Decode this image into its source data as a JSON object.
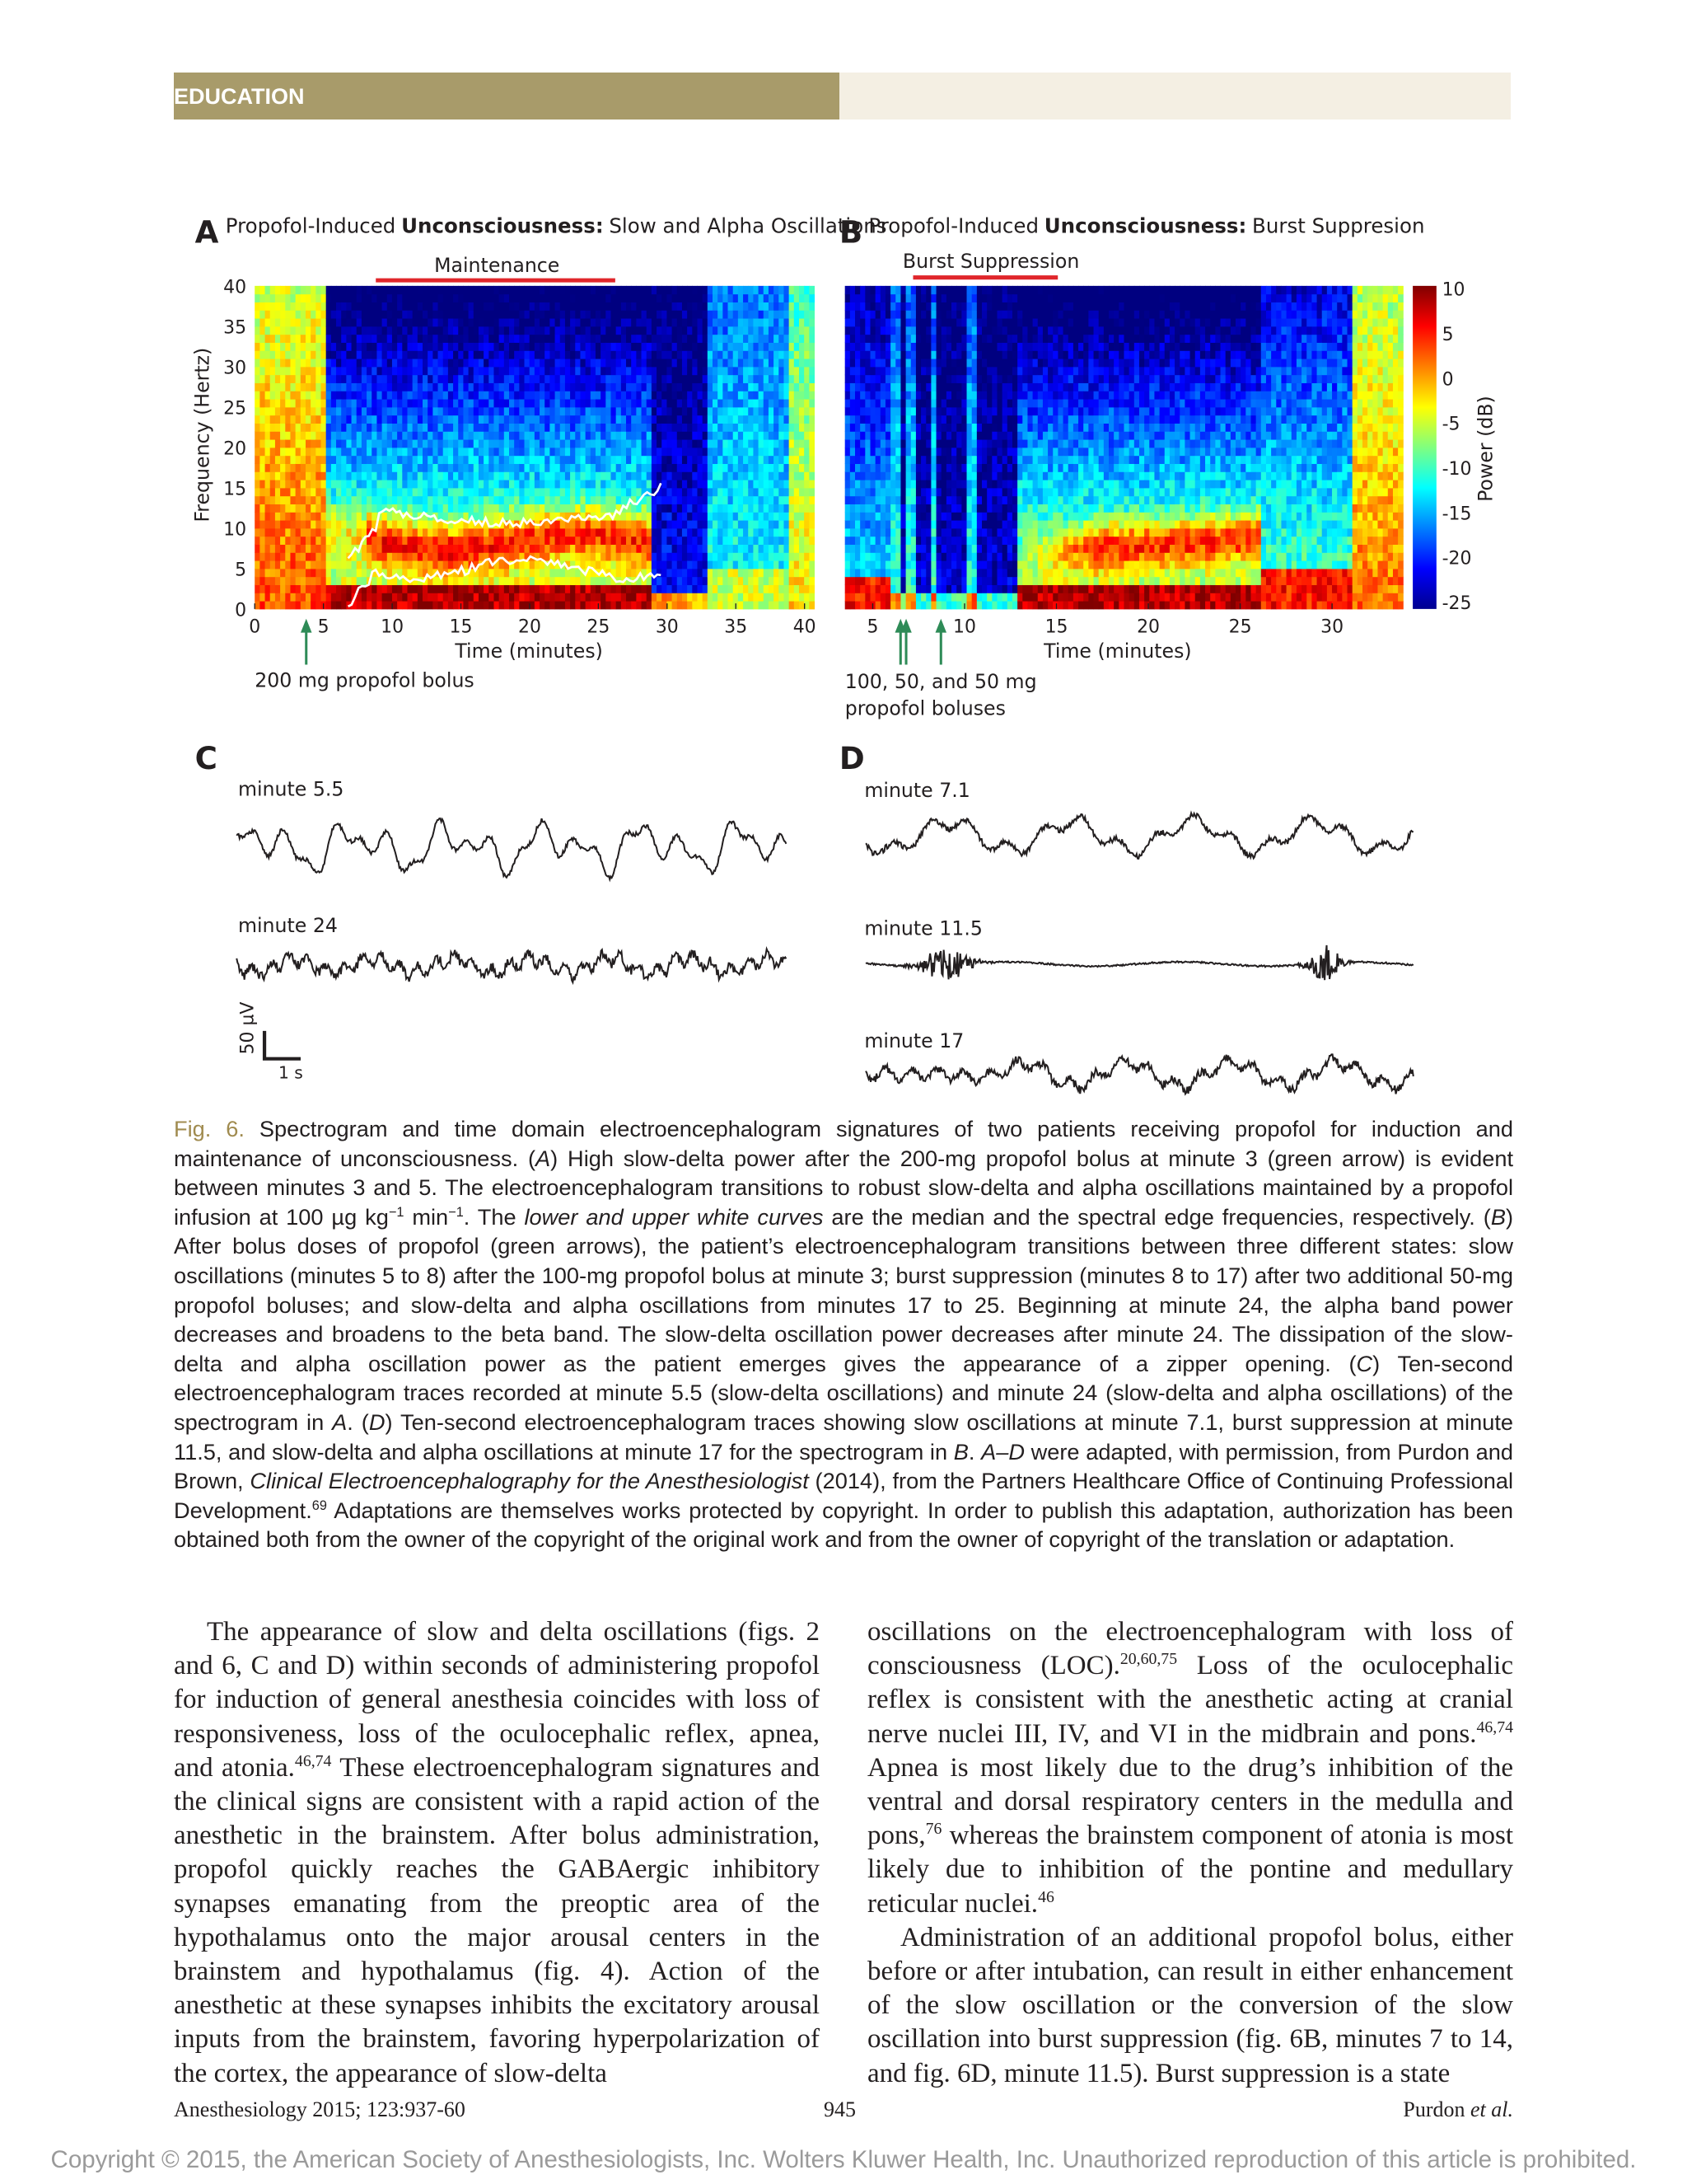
{
  "header": {
    "section": "EDUCATION"
  },
  "figure": {
    "panels": [
      {
        "letter": "A",
        "title": [
          "Propofol-Induced",
          "Unconsciousness:",
          "Slow and Alpha Oscillations"
        ],
        "period": "Maintenance",
        "x_label": "Time (minutes)",
        "y_label": "Frequency (Hertz)",
        "xticks": [
          0,
          5,
          10,
          15,
          20,
          25,
          30,
          35,
          40
        ],
        "yticks": [
          0,
          5,
          10,
          15,
          20,
          25,
          30,
          35,
          40
        ],
        "annotation": [
          "200 mg propofol bolus"
        ]
      },
      {
        "letter": "B",
        "title": [
          "Propofol-Induced",
          "Unconsciousness:",
          "Burst Suppresion"
        ],
        "period": "Burst Suppression",
        "x_label": "Time (minutes)",
        "xticks": [
          5,
          10,
          15,
          20,
          25,
          30
        ],
        "annotation": [
          "100, 50, and 50 mg",
          "propofol boluses"
        ]
      }
    ],
    "colorbar": {
      "label": "Power (dB)",
      "ticks": [
        10,
        5,
        0,
        -5,
        -10,
        -15,
        -20,
        -25
      ]
    },
    "traces": [
      {
        "letter": "C",
        "labels": [
          "minute 5.5",
          "minute 24"
        ]
      },
      {
        "letter": "D",
        "labels": [
          "minute 7.1",
          "minute 11.5",
          "minute 17"
        ]
      }
    ],
    "scale_bar": {
      "amplitude": "50 µV",
      "time": "1 s"
    }
  },
  "caption": [
    {
      "text": "Fig. 6.",
      "style": "label"
    },
    {
      "text": " Spectrogram and time domain electroencephalogram signatures of two patients receiving propofol for induction and maintenance of unconsciousness. ("
    },
    {
      "text": "A",
      "style": "italic"
    },
    {
      "text": ") High slow-delta power after the 200-mg propofol bolus at minute 3 (green arrow) is evident between minutes 3 and 5. The electroencephalogram transitions to robust slow-delta and alpha oscillations maintained by a propofol infusion at 100 µg kg"
    },
    {
      "text": "−1",
      "style": "sup"
    },
    {
      "text": " min"
    },
    {
      "text": "−1",
      "style": "sup"
    },
    {
      "text": ". The "
    },
    {
      "text": "lower and upper white curves",
      "style": "italic"
    },
    {
      "text": " are the median and the spectral edge frequencies, respectively. ("
    },
    {
      "text": "B",
      "style": "italic"
    },
    {
      "text": ") After bolus doses of propofol (green arrows), the patient’s electroencephalogram transitions between three different states: slow oscillations (minutes 5 to 8) after the 100-mg propofol bolus at minute 3; burst suppression (minutes 8 to 17) after two additional 50-mg propofol boluses; and slow-delta and alpha oscillations from minutes 17 to 25. Beginning at minute 24, the alpha band power decreases and broadens to the beta band. The slow-delta oscillation power decreases after minute 24. The dissipation of the slow-delta and alpha oscillation power as the patient emerges gives the appearance of a zipper opening. ("
    },
    {
      "text": "C",
      "style": "italic"
    },
    {
      "text": ") Ten-second electroencephalogram traces recorded at minute 5.5 (slow-delta oscillations) and minute 24 (slow-delta and alpha oscillations) of the spectrogram in "
    },
    {
      "text": "A",
      "style": "italic"
    },
    {
      "text": ". ("
    },
    {
      "text": "D",
      "style": "italic"
    },
    {
      "text": ") Ten-second electroencephalogram traces showing slow oscillations at minute 7.1, burst suppression at minute 11.5, and slow-delta and alpha oscillations at minute 17 for the spectrogram in "
    },
    {
      "text": "B",
      "style": "italic"
    },
    {
      "text": ". "
    },
    {
      "text": "A–D",
      "style": "italic"
    },
    {
      "text": " were adapted, with permission, from Purdon and Brown, "
    },
    {
      "text": "Clinical Electroencephalography for the Anesthesiologist",
      "style": "italic"
    },
    {
      "text": " (2014), from the Partners Healthcare Office of Continuing Professional Development."
    },
    {
      "text": "69",
      "style": "sup"
    },
    {
      "text": " Adaptations are themselves works protected by copyright. In order to publish this adaptation, authorization has been obtained both from the owner of the copyright of the original work and from the owner of copyright of the translation or adaptation."
    }
  ],
  "body": {
    "left": [
      [
        {
          "text": "The appearance of slow and delta oscillations (figs. 2 and 6, C and D) within seconds of administering propofol for induction of general anesthesia coincides with loss of responsiveness, loss of the oculocephalic reflex, apnea, and atonia."
        },
        {
          "text": "46,74",
          "style": "sup"
        },
        {
          "text": " These electroencephalogram signatures and the clinical signs are consistent with a rapid action of the anesthetic in the brainstem. After bolus administration, propofol quickly reaches the GABAergic inhibitory synapses emanating from the preoptic area of the hypothalamus onto the major arousal centers in the brainstem and hypothalamus (fig. 4). Action of the anesthetic at these synapses inhibits the excitatory arousal inputs from the brainstem, favoring hyperpolarization of the cortex, the appearance of slow-delta"
        }
      ]
    ],
    "right": [
      [
        {
          "text": "oscillations on the electroencephalogram with loss of consciousness (LOC)."
        },
        {
          "text": "20,60,75",
          "style": "sup"
        },
        {
          "text": " Loss of the oculocephalic reflex is consistent with the anesthetic acting at cranial nerve nuclei III, IV, and VI in the midbrain and pons."
        },
        {
          "text": "46,74",
          "style": "sup"
        },
        {
          "text": " Apnea is most likely due to the drug’s inhibition of the ventral and dorsal respiratory centers in the medulla and pons,"
        },
        {
          "text": "76",
          "style": "sup"
        },
        {
          "text": " whereas the brainstem component of atonia is most likely due to inhibition of the pontine and medullary reticular nuclei."
        },
        {
          "text": "46",
          "style": "sup"
        }
      ],
      [
        {
          "text": "Administration of an additional propofol bolus, either before or after intubation, can result in either enhancement of the slow oscillation or the conversion of the slow oscillation into burst suppression (fig. 6B, minutes 7 to 14, and fig. 6D, minute 11.5). Burst suppression is a state"
        }
      ]
    ]
  },
  "footer": {
    "journal": "Anesthesiology 2015; 123:937-60",
    "page": "945",
    "author": "Purdon",
    "author_suffix": "et al."
  },
  "copyright": "Copyright © 2015, the American Society of Anesthesiologists, Inc. Wolters Kluwer Health, Inc. Unauthorized reproduction of this article is prohibited."
}
